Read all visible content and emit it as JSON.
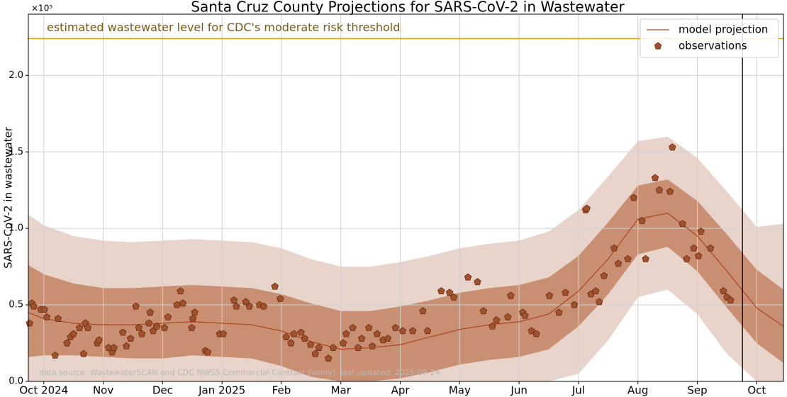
{
  "chart_data": {
    "type": "line",
    "title": "Santa Cruz County Projections for SARS-CoV-2 in Wastewater",
    "y_label": "SARS-CoV-2 in wastewater",
    "y_offset_label": "×10⁵",
    "xlim": [
      -0.26,
      12.45
    ],
    "ylim": [
      0,
      2.4
    ],
    "xticks": [
      {
        "value": 0,
        "label": "Oct 2024"
      },
      {
        "value": 1,
        "label": "Nov"
      },
      {
        "value": 2,
        "label": "Dec"
      },
      {
        "value": 3,
        "label": "Jan 2025"
      },
      {
        "value": 4,
        "label": "Feb"
      },
      {
        "value": 5,
        "label": "Mar"
      },
      {
        "value": 6,
        "label": "Apr"
      },
      {
        "value": 7,
        "label": "May"
      },
      {
        "value": 8,
        "label": "Jun"
      },
      {
        "value": 9,
        "label": "Jul"
      },
      {
        "value": 10,
        "label": "Aug"
      },
      {
        "value": 11,
        "label": "Sep"
      },
      {
        "value": 12,
        "label": "Oct"
      }
    ],
    "yticks": [
      {
        "value": 0,
        "label": "0.0"
      },
      0.5,
      {
        "value": 1,
        "label": "1.0"
      },
      1.5,
      {
        "value": 2,
        "label": "2.0"
      }
    ],
    "grid": true,
    "legend": "upper right",
    "x": [
      -0.26,
      0,
      0.5,
      1,
      1.5,
      2,
      2.5,
      3,
      3.5,
      4,
      4.5,
      5,
      5.5,
      6,
      6.5,
      7,
      7.5,
      8,
      8.5,
      9,
      9.5,
      10,
      10.5,
      11,
      11.5,
      12,
      12.45
    ],
    "outer_band": {
      "color": "#e8d4ca",
      "lower": [
        0,
        0,
        0,
        0,
        0,
        0,
        0,
        0,
        0,
        0,
        0,
        0,
        0,
        0,
        0,
        0,
        0,
        0,
        0,
        0.05,
        0.27,
        0.55,
        0.6,
        0.44,
        0.18,
        0,
        0
      ],
      "upper": [
        1.09,
        1.02,
        0.95,
        0.92,
        0.91,
        0.92,
        0.93,
        0.92,
        0.91,
        0.87,
        0.8,
        0.75,
        0.75,
        0.78,
        0.82,
        0.87,
        0.9,
        0.92,
        0.98,
        1.12,
        1.34,
        1.57,
        1.6,
        1.46,
        1.24,
        1.01,
        1.03
      ]
    },
    "inner_band": {
      "color": "#c98f72",
      "lower": [
        0.16,
        0.17,
        0.17,
        0.16,
        0.15,
        0.15,
        0.17,
        0.16,
        0.15,
        0.1,
        0.03,
        0,
        0,
        0.02,
        0.06,
        0.11,
        0.14,
        0.16,
        0.21,
        0.36,
        0.57,
        0.83,
        0.88,
        0.72,
        0.48,
        0.25,
        0.12
      ],
      "upper": [
        0.76,
        0.7,
        0.64,
        0.61,
        0.61,
        0.62,
        0.63,
        0.62,
        0.61,
        0.57,
        0.51,
        0.46,
        0.46,
        0.49,
        0.53,
        0.58,
        0.61,
        0.63,
        0.68,
        0.82,
        1.04,
        1.28,
        1.32,
        1.18,
        0.96,
        0.73,
        0.6
      ]
    },
    "model": {
      "name": "model projection",
      "color": "#b04a26",
      "values": [
        0.45,
        0.41,
        0.38,
        0.37,
        0.37,
        0.38,
        0.39,
        0.38,
        0.37,
        0.33,
        0.26,
        0.21,
        0.22,
        0.24,
        0.29,
        0.34,
        0.37,
        0.39,
        0.44,
        0.59,
        0.8,
        1.06,
        1.1,
        0.95,
        0.72,
        0.48,
        0.36
      ]
    },
    "observations": {
      "name": "observations",
      "color": "#a0522d",
      "edge_color": "#6b2a10",
      "x": [
        -0.24,
        -0.2,
        -0.17,
        -0.05,
        0.01,
        0.05,
        0.19,
        0.24,
        0.39,
        0.45,
        0.5,
        0.6,
        0.67,
        0.7,
        0.74,
        0.9,
        0.93,
        1.09,
        1.15,
        1.18,
        1.33,
        1.39,
        1.46,
        1.55,
        1.6,
        1.65,
        1.77,
        1.79,
        1.84,
        1.9,
        2.03,
        2.09,
        2.24,
        2.3,
        2.34,
        2.49,
        2.51,
        2.54,
        2.72,
        2.76,
        2.96,
        3.02,
        3.2,
        3.24,
        3.4,
        3.46,
        3.63,
        3.7,
        3.89,
        3.98,
        4.08,
        4.16,
        4.21,
        4.33,
        4.39,
        4.49,
        4.57,
        4.63,
        4.79,
        4.87,
        5.04,
        5.09,
        5.2,
        5.29,
        5.35,
        5.47,
        5.53,
        5.61,
        5.71,
        5.79,
        5.92,
        6.04,
        6.21,
        6.38,
        6.46,
        6.69,
        6.83,
        6.9,
        7.14,
        7.3,
        7.4,
        7.55,
        7.62,
        7.81,
        7.86,
        8.06,
        8.1,
        8.21,
        8.29,
        8.51,
        8.67,
        8.78,
        8.93,
        9.12,
        9.14,
        9.21,
        9.29,
        9.35,
        9.43,
        9.6,
        9.67,
        9.83,
        9.93,
        10.07,
        10.13,
        10.29,
        10.36,
        10.54,
        10.58,
        10.75,
        10.82,
        10.94,
        11.02,
        11.06,
        11.22,
        11.44,
        11.5,
        11.56
      ],
      "values": [
        0.38,
        0.51,
        0.49,
        0.47,
        0.47,
        0.42,
        0.17,
        0.41,
        0.25,
        0.29,
        0.31,
        0.35,
        0.18,
        0.38,
        0.35,
        0.25,
        0.27,
        0.22,
        0.19,
        0.22,
        0.32,
        0.23,
        0.28,
        0.49,
        0.35,
        0.31,
        0.38,
        0.45,
        0.33,
        0.36,
        0.35,
        0.42,
        0.5,
        0.59,
        0.51,
        0.35,
        0.41,
        0.45,
        0.2,
        0.19,
        0.31,
        0.31,
        0.53,
        0.49,
        0.52,
        0.49,
        0.5,
        0.49,
        0.62,
        0.54,
        0.29,
        0.25,
        0.31,
        0.32,
        0.28,
        0.24,
        0.18,
        0.22,
        0.15,
        0.22,
        0.25,
        0.31,
        0.35,
        0.22,
        0.28,
        0.35,
        0.23,
        0.31,
        0.27,
        0.28,
        0.35,
        0.33,
        0.33,
        0.46,
        0.33,
        0.59,
        0.58,
        0.55,
        0.68,
        0.65,
        0.46,
        0.36,
        0.4,
        0.42,
        0.56,
        0.45,
        0.43,
        0.33,
        0.31,
        0.56,
        0.45,
        0.58,
        0.5,
        1.12,
        1.13,
        0.57,
        0.59,
        0.52,
        0.69,
        0.87,
        0.77,
        0.8,
        1.2,
        1.05,
        0.8,
        1.33,
        1.25,
        1.24,
        1.53,
        1.03,
        0.8,
        0.87,
        0.82,
        0.98,
        0.87,
        0.59,
        0.55,
        0.53
      ]
    },
    "threshold": {
      "value": 2.24,
      "label": "estimated wastewater level for CDC's moderate risk threshold",
      "color": "#d4a017",
      "text_color": "#7a5a12"
    },
    "update_line": {
      "x": 11.76,
      "color": "#000000"
    },
    "source_note": "data source: WastewaterSCAN and CDC NWSS Commercial Contract (Verily), last updated: 2025-09-24"
  }
}
